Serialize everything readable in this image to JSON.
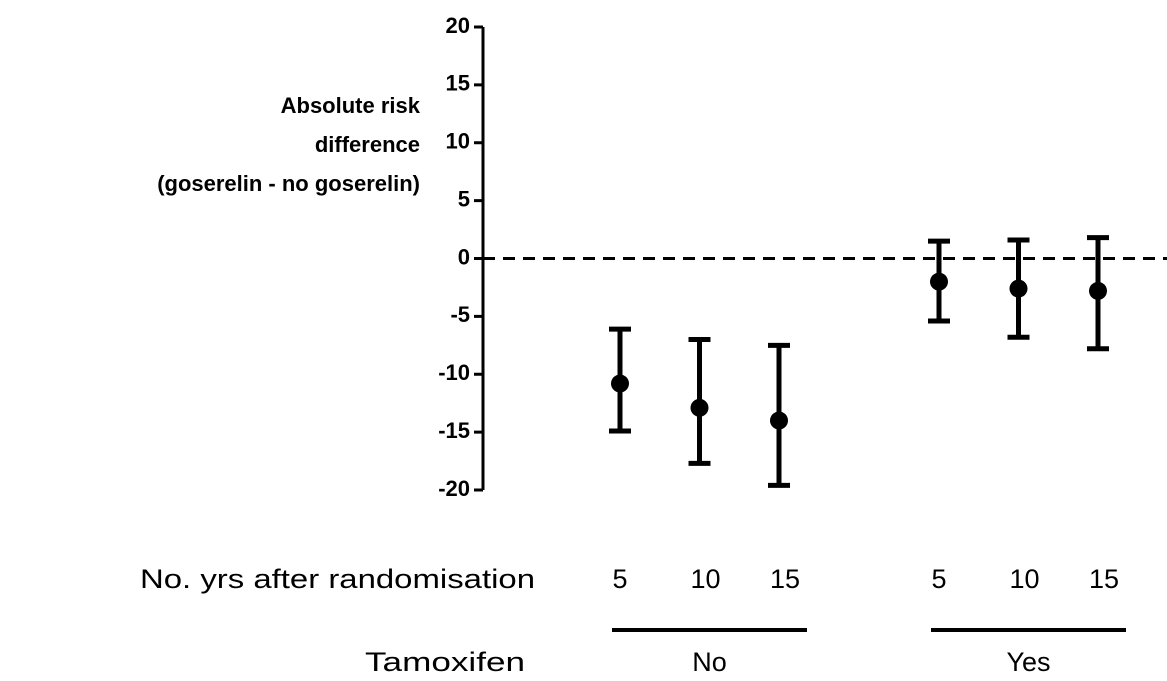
{
  "chart_data": {
    "type": "errorbar",
    "ylabel": [
      "Absolute risk",
      "difference",
      "(goserelin - no goserelin)"
    ],
    "ylim": [
      -20,
      20
    ],
    "yticks": [
      -20,
      -15,
      -10,
      -5,
      0,
      5,
      10,
      15,
      20
    ],
    "reference_line": 0,
    "color": "#000000",
    "x_row_label": "No. yrs after randomisation",
    "group_row_label": "Tamoxifen",
    "groups": [
      {
        "name": "No",
        "categories": [
          "5",
          "10",
          "15"
        ],
        "values": [
          -10.8,
          -12.9,
          -14.0
        ],
        "lower": [
          -14.9,
          -17.7,
          -19.6
        ],
        "upper": [
          -6.1,
          -7.0,
          -7.5
        ]
      },
      {
        "name": "Yes",
        "categories": [
          "5",
          "10",
          "15"
        ],
        "values": [
          -2.0,
          -2.6,
          -2.8
        ],
        "lower": [
          -5.4,
          -6.8,
          -7.8
        ],
        "upper": [
          1.5,
          1.6,
          1.8
        ]
      }
    ]
  }
}
